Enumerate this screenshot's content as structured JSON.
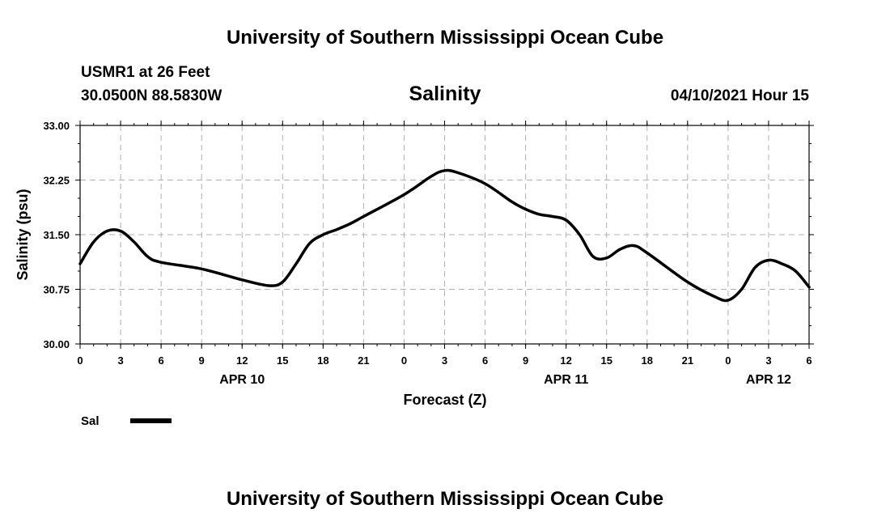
{
  "header": {
    "title": "University of Southern Mississippi Ocean Cube",
    "station": "USMR1 at 26 Feet",
    "coordinates": "30.0500N  88.5830W",
    "variable": "Salinity",
    "datetime": "04/10/2021 Hour 15"
  },
  "footer": {
    "title": "University of Southern Mississippi Ocean Cube"
  },
  "chart_data": {
    "type": "line",
    "title": "Salinity",
    "xlabel": "Forecast (Z)",
    "ylabel": "Salinity (psu)",
    "ylim": [
      30.0,
      33.0
    ],
    "xlim": [
      0,
      54
    ],
    "y_ticks": [
      "30.00",
      "30.75",
      "31.50",
      "32.25",
      "33.00"
    ],
    "y_tick_values": [
      30.0,
      30.75,
      31.5,
      32.25,
      33.0
    ],
    "x_tick_labels": [
      "0",
      "3",
      "6",
      "9",
      "12",
      "15",
      "18",
      "21",
      "0",
      "3",
      "6",
      "9",
      "12",
      "15",
      "18",
      "21",
      "0",
      "3",
      "6"
    ],
    "date_labels": [
      {
        "label": "APR 10",
        "hour": 12
      },
      {
        "label": "APR 11",
        "hour": 36
      },
      {
        "label": "APR 12",
        "hour": 51
      }
    ],
    "grid": true,
    "series": [
      {
        "name": "Sal",
        "color": "#000000",
        "x": [
          0,
          1,
          2,
          3,
          4,
          5,
          6,
          9,
          12,
          14,
          15,
          16,
          17,
          18,
          19,
          20,
          21,
          24,
          26,
          27,
          28,
          30,
          32,
          33,
          34,
          35,
          36,
          37,
          38,
          39,
          40,
          41,
          42,
          45,
          47,
          48,
          49,
          50,
          51,
          52,
          53,
          54
        ],
        "values": [
          31.1,
          31.4,
          31.55,
          31.55,
          31.4,
          31.2,
          31.12,
          31.03,
          30.88,
          30.8,
          30.85,
          31.1,
          31.38,
          31.5,
          31.57,
          31.65,
          31.75,
          32.05,
          32.3,
          32.38,
          32.35,
          32.2,
          31.95,
          31.85,
          31.78,
          31.75,
          31.7,
          31.5,
          31.2,
          31.18,
          31.3,
          31.35,
          31.25,
          30.85,
          30.65,
          30.6,
          30.75,
          31.05,
          31.15,
          31.1,
          31.0,
          30.78
        ]
      }
    ]
  }
}
